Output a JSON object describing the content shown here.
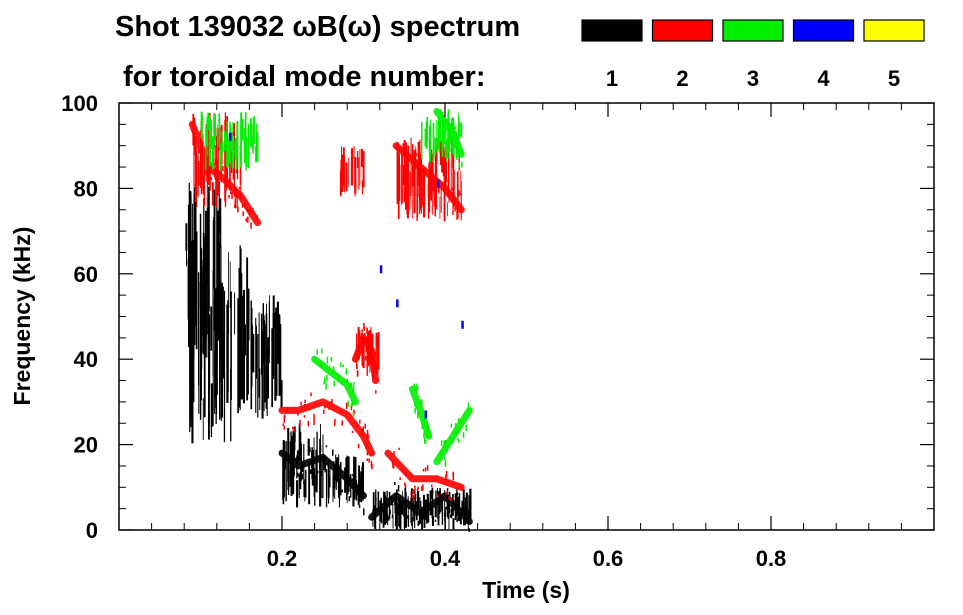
{
  "chart_data": {
    "type": "heatmap",
    "title": "Shot 139032 ωB(ω) spectrum",
    "subtitle": "for toroidal mode number:",
    "xlabel": "Time (s)",
    "ylabel": "Frequency (kHz)",
    "xlim": [
      0.0,
      1.0
    ],
    "ylim": [
      0,
      100
    ],
    "x_ticks": [
      0.2,
      0.4,
      0.6,
      0.8
    ],
    "y_ticks": [
      0,
      20,
      40,
      60,
      80,
      100
    ],
    "x_tick_labels": [
      "0.2",
      "0.4",
      "0.6",
      "0.8"
    ],
    "y_tick_labels": [
      "0",
      "20",
      "40",
      "60",
      "80",
      "100"
    ],
    "legend_position": "top-right",
    "legend": [
      {
        "mode": "1",
        "color": "#000000"
      },
      {
        "mode": "2",
        "color": "#ff0000"
      },
      {
        "mode": "3",
        "color": "#00ee00"
      },
      {
        "mode": "4",
        "color": "#0000ff"
      },
      {
        "mode": "5",
        "color": "#ffff00"
      }
    ],
    "series": [
      {
        "mode": "1",
        "color": "#000000",
        "regions": [
          {
            "t0": 0.078,
            "t1": 0.125,
            "f0": 40,
            "f1": 82
          },
          {
            "t0": 0.085,
            "t1": 0.16,
            "f0": 20,
            "f1": 68
          },
          {
            "t0": 0.16,
            "t1": 0.2,
            "f0": 25,
            "f1": 55
          },
          {
            "t0": 0.2,
            "t1": 0.25,
            "f0": 5,
            "f1": 25
          },
          {
            "t0": 0.25,
            "t1": 0.3,
            "f0": 5,
            "f1": 18
          },
          {
            "t0": 0.31,
            "t1": 0.43,
            "f0": 0,
            "f1": 10
          }
        ],
        "traces": [
          {
            "t": [
              0.2,
              0.22,
              0.25,
              0.28,
              0.3
            ],
            "f": [
              18,
              15,
              17,
              12,
              8
            ]
          },
          {
            "t": [
              0.31,
              0.34,
              0.37,
              0.4,
              0.43
            ],
            "f": [
              3,
              8,
              4,
              8,
              2
            ]
          }
        ]
      },
      {
        "mode": "2",
        "color": "#ff0000",
        "regions": [
          {
            "t0": 0.09,
            "t1": 0.15,
            "f0": 75,
            "f1": 98
          },
          {
            "t0": 0.27,
            "t1": 0.3,
            "f0": 78,
            "f1": 90
          },
          {
            "t0": 0.34,
            "t1": 0.42,
            "f0": 72,
            "f1": 92
          },
          {
            "t0": 0.29,
            "t1": 0.32,
            "f0": 36,
            "f1": 48
          }
        ],
        "traces": [
          {
            "t": [
              0.09,
              0.11,
              0.13,
              0.15,
              0.17
            ],
            "f": [
              95,
              85,
              82,
              78,
              72
            ]
          },
          {
            "t": [
              0.2,
              0.22,
              0.25,
              0.28,
              0.3,
              0.31
            ],
            "f": [
              28,
              28,
              30,
              27,
              22,
              18
            ]
          },
          {
            "t": [
              0.29,
              0.3,
              0.31,
              0.315
            ],
            "f": [
              40,
              45,
              42,
              35
            ]
          },
          {
            "t": [
              0.33,
              0.36,
              0.39,
              0.42
            ],
            "f": [
              18,
              12,
              12,
              10
            ]
          },
          {
            "t": [
              0.34,
              0.37,
              0.4,
              0.42
            ],
            "f": [
              90,
              85,
              80,
              75
            ]
          }
        ]
      },
      {
        "mode": "3",
        "color": "#00ee00",
        "regions": [
          {
            "t0": 0.1,
            "t1": 0.17,
            "f0": 84,
            "f1": 98
          },
          {
            "t0": 0.37,
            "t1": 0.42,
            "f0": 86,
            "f1": 98
          }
        ],
        "traces": [
          {
            "t": [
              0.24,
              0.26,
              0.28,
              0.29
            ],
            "f": [
              40,
              37,
              34,
              30
            ]
          },
          {
            "t": [
              0.36,
              0.37,
              0.38
            ],
            "f": [
              33,
              28,
              22
            ]
          },
          {
            "t": [
              0.39,
              0.41,
              0.43
            ],
            "f": [
              16,
              22,
              28
            ]
          },
          {
            "t": [
              0.39,
              0.41,
              0.42
            ],
            "f": [
              98,
              93,
              88
            ]
          }
        ]
      },
      {
        "mode": "4",
        "color": "#0000ff",
        "points": [
          {
            "t": 0.135,
            "f": 93
          },
          {
            "t": 0.32,
            "f": 62
          },
          {
            "t": 0.34,
            "f": 54
          },
          {
            "t": 0.375,
            "f": 28
          },
          {
            "t": 0.42,
            "f": 49
          },
          {
            "t": 0.39,
            "f": 82
          }
        ]
      },
      {
        "mode": "5",
        "color": "#ffff00",
        "points": []
      }
    ]
  }
}
